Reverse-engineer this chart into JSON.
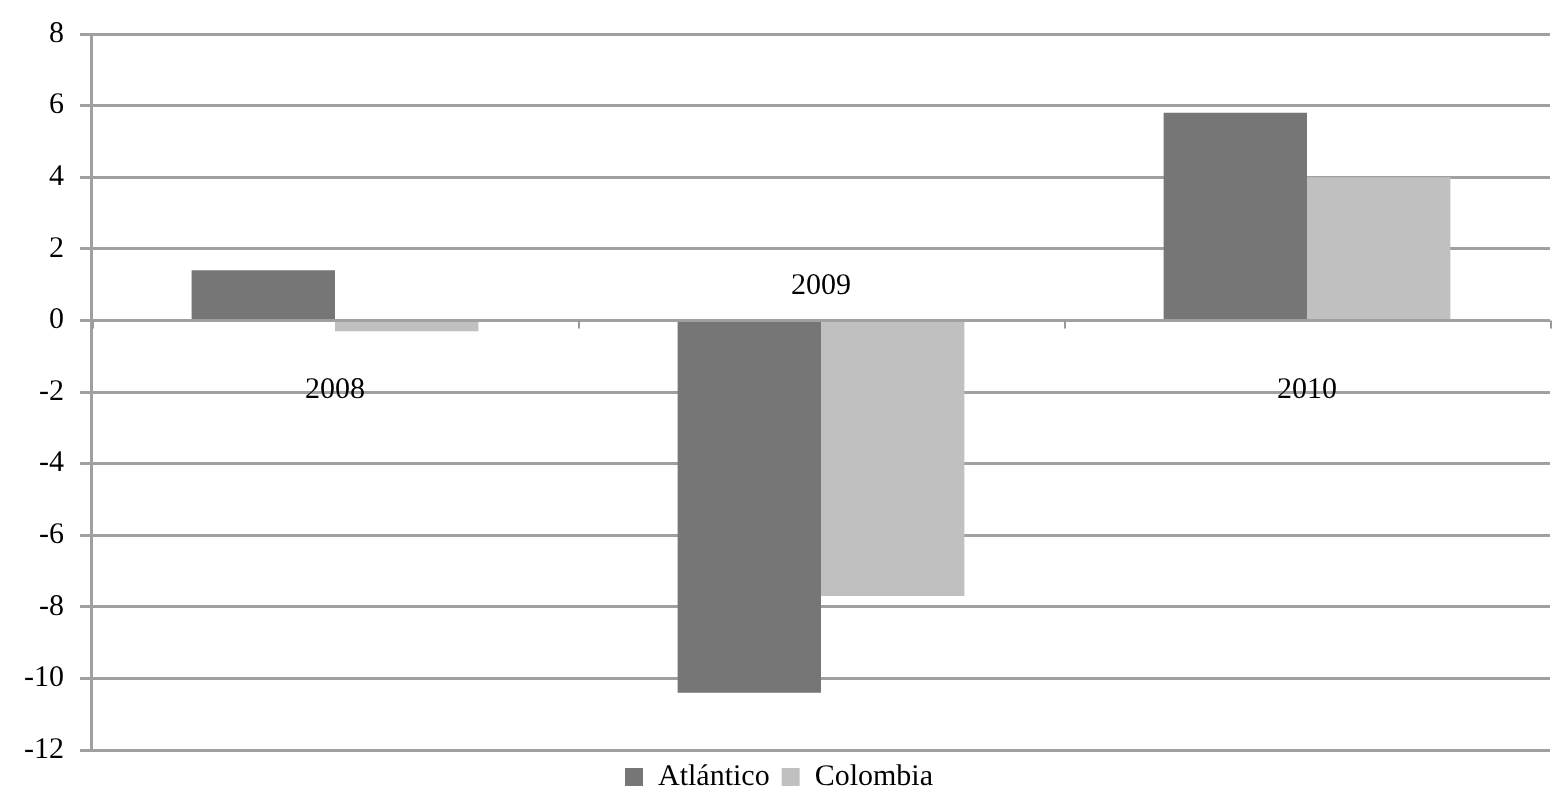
{
  "chart_data": {
    "type": "bar",
    "categories": [
      "2008",
      "2009",
      "2010"
    ],
    "series": [
      {
        "name": "Atlántico",
        "color": "#767676",
        "values": [
          1.4,
          -10.4,
          5.8
        ]
      },
      {
        "name": "Colombia",
        "color": "#c0c0c0",
        "values": [
          -0.3,
          -7.7,
          4.0
        ]
      }
    ],
    "ylim": [
      -12,
      8
    ],
    "yticks": [
      -12,
      -10,
      -8,
      -6,
      -4,
      -2,
      0,
      2,
      4,
      6,
      8
    ],
    "grid": "y",
    "legend": "bottom"
  }
}
